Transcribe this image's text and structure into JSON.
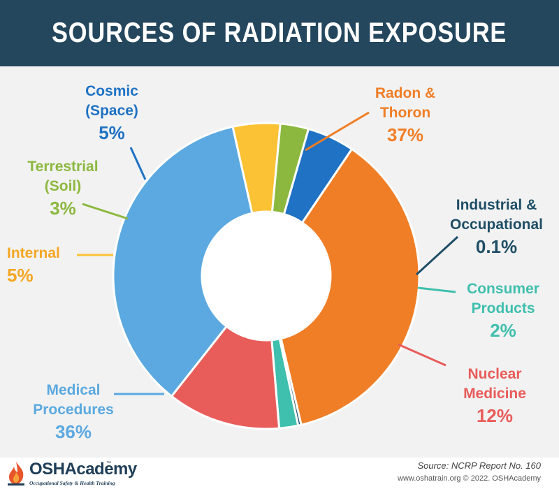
{
  "title": "SOURCES OF RADIATION EXPOSURE",
  "chart_data": {
    "type": "pie",
    "title": "SOURCES OF RADIATION EXPOSURE",
    "slices": [
      {
        "name": "Radon & Thoron",
        "label_lines": [
          "Radon &",
          "Thoron"
        ],
        "value_label": "37%",
        "value": 37,
        "color": "#f07e26",
        "label_color": "#f07e26"
      },
      {
        "name": "Industrial & Occupational",
        "label_lines": [
          "Industrial &",
          "Occupational"
        ],
        "value_label": "0.1%",
        "value": 0.1,
        "color": "#1f4e66",
        "label_color": "#1f4e66"
      },
      {
        "name": "Consumer Products",
        "label_lines": [
          "Consumer",
          "Products"
        ],
        "value_label": "2%",
        "value": 2,
        "color": "#3fbfad",
        "label_color": "#3fbfad"
      },
      {
        "name": "Nuclear Medicine",
        "label_lines": [
          "Nuclear",
          "Medicine"
        ],
        "value_label": "12%",
        "value": 12,
        "color": "#e85c5a",
        "label_color": "#e85c5a"
      },
      {
        "name": "Medical Procedures",
        "label_lines": [
          "Medical",
          "Procedures"
        ],
        "value_label": "36%",
        "value": 36,
        "color": "#5ba9e0",
        "label_color": "#5ba9e0"
      },
      {
        "name": "Internal",
        "label_lines": [
          "Internal"
        ],
        "value_label": "5%",
        "value": 5,
        "color": "#fcc235",
        "label_color": "#f5a623"
      },
      {
        "name": "Terrestrial (Soil)",
        "label_lines": [
          "Terrestrial",
          "(Soil)"
        ],
        "value_label": "3%",
        "value": 3,
        "color": "#8db83f",
        "label_color": "#8db83f"
      },
      {
        "name": "Cosmic (Space)",
        "label_lines": [
          "Cosmic",
          "(Space)"
        ],
        "value_label": "5%",
        "value": 5,
        "color": "#1f72c4",
        "label_color": "#1f72c4"
      }
    ]
  },
  "footer": {
    "logo_name": "OSHAcademy",
    "logo_tm": "™",
    "logo_tagline": "Occupational Safety & Health Training",
    "source": "Source: NCRP Report No. 160",
    "credit": "www.oshatrain.org © 2022. OSHAcademy"
  }
}
